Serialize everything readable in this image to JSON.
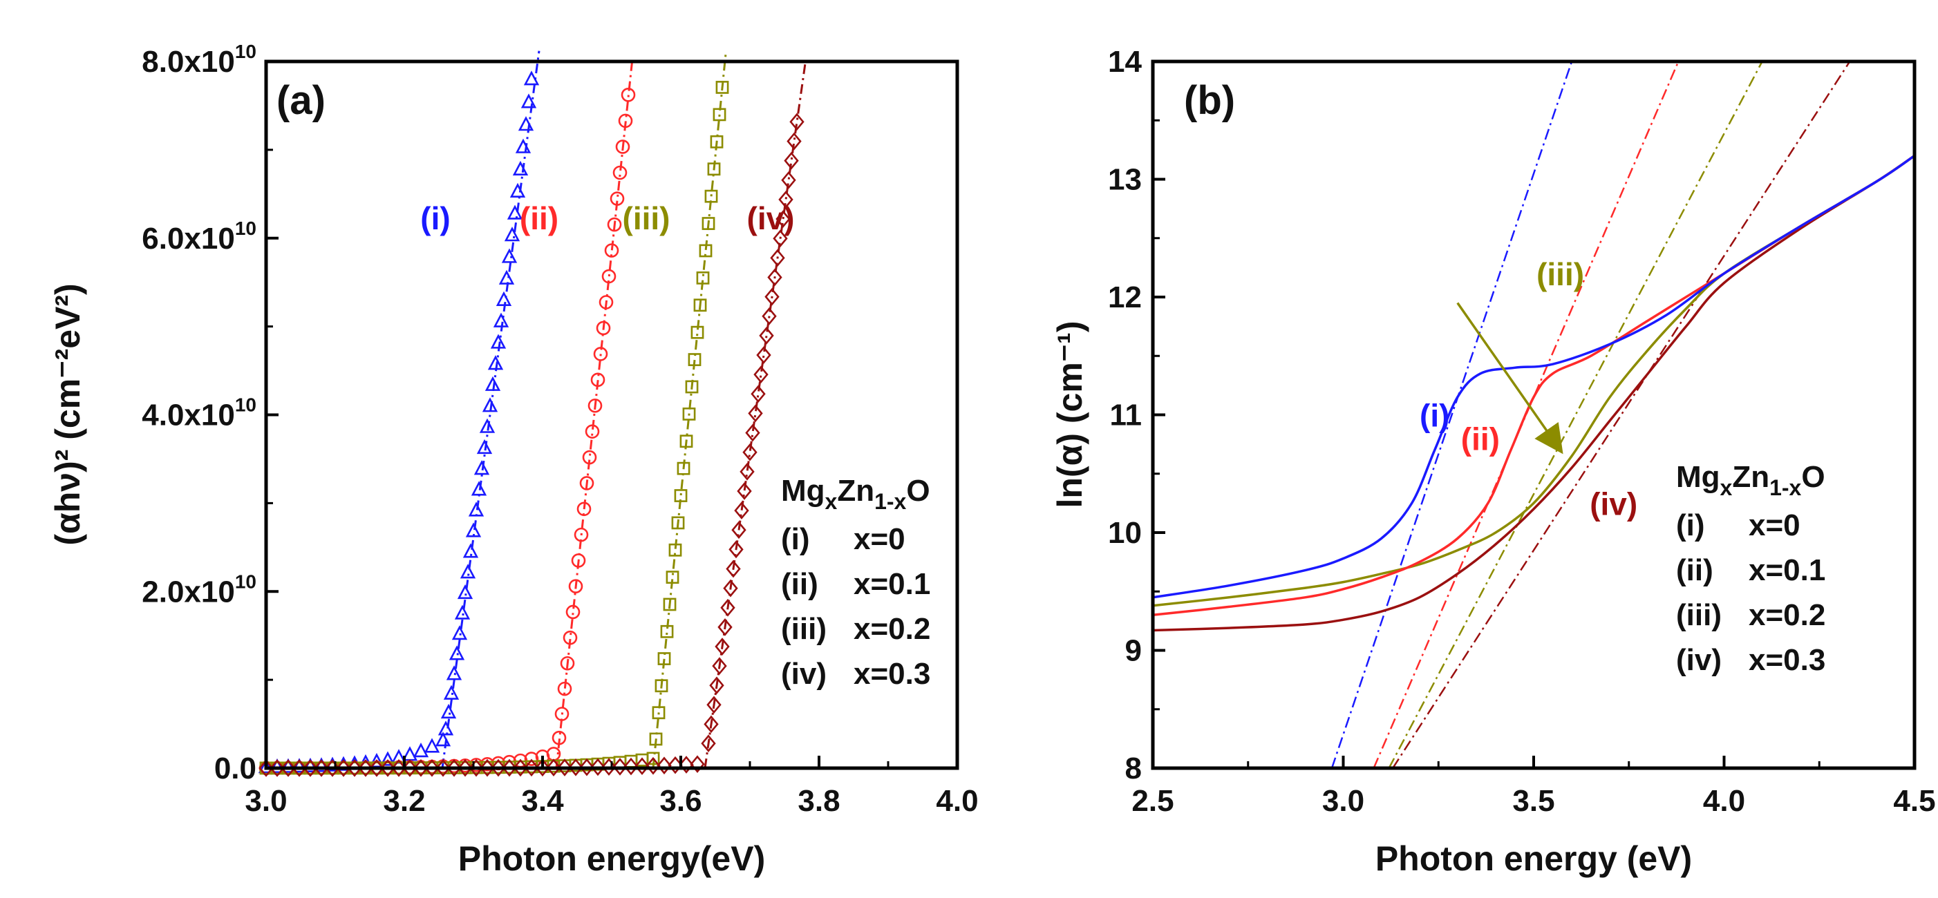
{
  "chart_data": [
    {
      "type": "scatter",
      "panel_label": "(a)",
      "title": "",
      "xlabel": "Photon energy(eV)",
      "ylabel": "(αhν)² (cm⁻²eV²)",
      "xlim": [
        3.0,
        4.0
      ],
      "ylim": [
        0,
        80000000000.0
      ],
      "x_ticks": [
        "3.0",
        "3.2",
        "3.4",
        "3.6",
        "3.8",
        "4.0"
      ],
      "x_tick_values": [
        3.0,
        3.2,
        3.4,
        3.6,
        3.8,
        4.0
      ],
      "y_ticks": [
        {
          "value": 0,
          "mantissa": "0.0",
          "exp": ""
        },
        {
          "value": 20000000000.0,
          "mantissa": "2.0x10",
          "exp": "10"
        },
        {
          "value": 40000000000.0,
          "mantissa": "4.0x10",
          "exp": "10"
        },
        {
          "value": 60000000000.0,
          "mantissa": "6.0x10",
          "exp": "10"
        },
        {
          "value": 80000000000.0,
          "mantissa": "8.0x10",
          "exp": "10"
        }
      ],
      "legend": {
        "title_parts": {
          "mg": "Mg",
          "x": "x",
          "zn": "Zn",
          "onex": "1-x",
          "o": "O"
        },
        "entries": [
          {
            "label": "(i)",
            "text": "x=0"
          },
          {
            "label": "(ii)",
            "text": "x=0.1"
          },
          {
            "label": "(iii)",
            "text": "x=0.2"
          },
          {
            "label": "(iv)",
            "text": "x=0.3"
          }
        ]
      },
      "series": [
        {
          "name": "(i)",
          "composition": "x=0",
          "marker": "triangle",
          "color": "#1a1aff",
          "edge_eV": 3.255,
          "tail_value": 3000000000.0,
          "tail_shape": 0.065,
          "slope": 580000000000.0,
          "mark_range": [
            3.0,
            3.39
          ],
          "fit_range": [
            3.255,
            3.395
          ],
          "label_at": [
            3.245,
            61000000000.0
          ]
        },
        {
          "name": "(ii)",
          "composition": "x=0.1",
          "marker": "circle",
          "color": "#ff2a2a",
          "edge_eV": 3.42,
          "tail_value": 1700000000.0,
          "tail_shape": 0.075,
          "slope": 730000000000.0,
          "mark_range": [
            3.0,
            3.525
          ],
          "fit_range": [
            3.42,
            3.53
          ],
          "label_at": [
            3.395,
            61000000000.0
          ]
        },
        {
          "name": "(iii)",
          "composition": "x=0.2",
          "marker": "square",
          "color": "#8c8c00",
          "edge_eV": 3.56,
          "tail_value": 1100000000.0,
          "tail_shape": 0.09,
          "slope": 770000000000.0,
          "mark_range": [
            3.0,
            3.665
          ],
          "fit_range": [
            3.56,
            3.665
          ],
          "label_at": [
            3.55,
            61000000000.0
          ]
        },
        {
          "name": "(iv)",
          "composition": "x=0.3",
          "marker": "diamond",
          "color": "#9b1010",
          "edge_eV": 3.635,
          "tail_value": 500000000.0,
          "tail_shape": 0.11,
          "slope": 550000000000.0,
          "mark_range": [
            3.0,
            3.77
          ],
          "fit_range": [
            3.635,
            3.78
          ],
          "label_at": [
            3.73,
            61000000000.0
          ]
        }
      ]
    },
    {
      "type": "line",
      "panel_label": "(b)",
      "title": "",
      "xlabel": "Photon energy (eV)",
      "ylabel": "ln(α) (cm⁻¹)",
      "xlim": [
        2.5,
        4.5
      ],
      "ylim": [
        8,
        14
      ],
      "x_ticks": [
        "2.5",
        "3.0",
        "3.5",
        "4.0",
        "4.5"
      ],
      "x_tick_values": [
        2.5,
        3.0,
        3.5,
        4.0,
        4.5
      ],
      "y_ticks": [
        "8",
        "9",
        "10",
        "11",
        "12",
        "13",
        "14"
      ],
      "y_tick_values": [
        8,
        9,
        10,
        11,
        12,
        13,
        14
      ],
      "legend": {
        "title_parts": {
          "mg": "Mg",
          "x": "x",
          "zn": "Zn",
          "onex": "1-x",
          "o": "O"
        },
        "entries": [
          {
            "label": "(i)",
            "text": "x=0"
          },
          {
            "label": "(ii)",
            "text": "x=0.1"
          },
          {
            "label": "(iii)",
            "text": "x=0.2"
          },
          {
            "label": "(iv)",
            "text": "x=0.3"
          }
        ]
      },
      "annotation": {
        "text": "(iii)",
        "arrow_from": [
          3.3,
          11.95
        ],
        "arrow_to": [
          3.57,
          10.7
        ]
      },
      "series": [
        {
          "name": "(i)",
          "composition": "x=0",
          "color": "#1a1aff",
          "curve": [
            [
              2.5,
              9.45
            ],
            [
              2.7,
              9.55
            ],
            [
              2.9,
              9.68
            ],
            [
              3.0,
              9.78
            ],
            [
              3.1,
              9.95
            ],
            [
              3.18,
              10.25
            ],
            [
              3.24,
              10.7
            ],
            [
              3.3,
              11.15
            ],
            [
              3.36,
              11.35
            ],
            [
              3.45,
              11.4
            ],
            [
              3.55,
              11.43
            ],
            [
              3.7,
              11.6
            ],
            [
              3.85,
              11.85
            ],
            [
              4.0,
              12.2
            ],
            [
              4.2,
              12.6
            ],
            [
              4.4,
              12.98
            ],
            [
              4.5,
              13.2
            ]
          ],
          "fit_line": [
            [
              2.97,
              8.0
            ],
            [
              3.6,
              14.0
            ]
          ],
          "label_at": [
            3.24,
            10.9
          ]
        },
        {
          "name": "(ii)",
          "composition": "x=0.1",
          "color": "#ff2a2a",
          "curve": [
            [
              2.5,
              9.3
            ],
            [
              2.7,
              9.37
            ],
            [
              2.9,
              9.45
            ],
            [
              3.0,
              9.52
            ],
            [
              3.1,
              9.62
            ],
            [
              3.2,
              9.75
            ],
            [
              3.3,
              9.95
            ],
            [
              3.38,
              10.25
            ],
            [
              3.44,
              10.7
            ],
            [
              3.5,
              11.15
            ],
            [
              3.55,
              11.35
            ],
            [
              3.65,
              11.5
            ],
            [
              3.8,
              11.8
            ],
            [
              4.0,
              12.2
            ],
            [
              4.2,
              12.6
            ],
            [
              4.4,
              12.98
            ],
            [
              4.5,
              13.2
            ]
          ],
          "fit_line": [
            [
              3.08,
              8.0
            ],
            [
              3.88,
              14.0
            ]
          ],
          "label_at": [
            3.36,
            10.7
          ]
        },
        {
          "name": "(iii)",
          "composition": "x=0.2",
          "color": "#8c8c00",
          "curve": [
            [
              2.5,
              9.38
            ],
            [
              2.7,
              9.45
            ],
            [
              2.9,
              9.53
            ],
            [
              3.0,
              9.58
            ],
            [
              3.1,
              9.65
            ],
            [
              3.2,
              9.73
            ],
            [
              3.3,
              9.85
            ],
            [
              3.4,
              10.0
            ],
            [
              3.5,
              10.25
            ],
            [
              3.6,
              10.65
            ],
            [
              3.7,
              11.15
            ],
            [
              3.8,
              11.55
            ],
            [
              3.9,
              11.9
            ],
            [
              4.0,
              12.2
            ],
            [
              4.2,
              12.6
            ],
            [
              4.4,
              12.98
            ],
            [
              4.5,
              13.2
            ]
          ],
          "fit_line": [
            [
              3.12,
              8.0
            ],
            [
              4.1,
              14.0
            ]
          ],
          "label_at": [
            3.57,
            12.1
          ]
        },
        {
          "name": "(iv)",
          "composition": "x=0.3",
          "color": "#9b1010",
          "curve": [
            [
              2.5,
              9.17
            ],
            [
              2.7,
              9.19
            ],
            [
              2.9,
              9.22
            ],
            [
              3.0,
              9.26
            ],
            [
              3.1,
              9.33
            ],
            [
              3.2,
              9.45
            ],
            [
              3.3,
              9.65
            ],
            [
              3.4,
              9.9
            ],
            [
              3.5,
              10.2
            ],
            [
              3.6,
              10.55
            ],
            [
              3.7,
              10.95
            ],
            [
              3.8,
              11.35
            ],
            [
              3.9,
              11.75
            ],
            [
              4.0,
              12.12
            ],
            [
              4.2,
              12.58
            ],
            [
              4.4,
              12.98
            ],
            [
              4.5,
              13.2
            ]
          ],
          "fit_line": [
            [
              3.13,
              8.0
            ],
            [
              4.33,
              14.0
            ]
          ],
          "label_at": [
            3.71,
            10.15
          ]
        }
      ]
    }
  ]
}
